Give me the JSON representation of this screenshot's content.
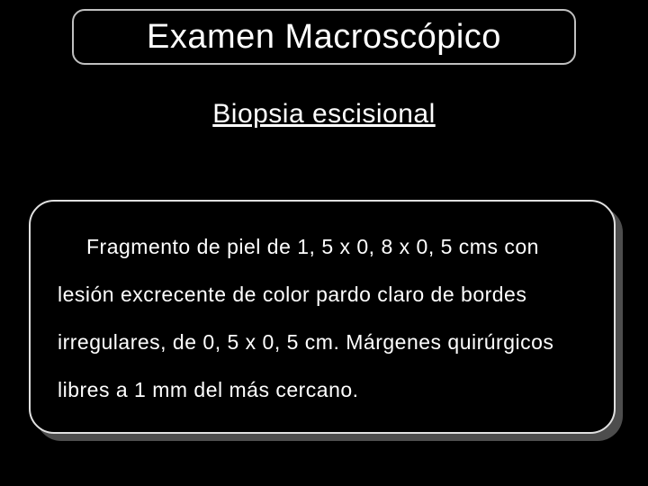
{
  "slide": {
    "title": "Examen Macroscópico",
    "subtitle": "Biopsia escisional",
    "body": "Fragmento de piel de 1, 5 x 0, 8 x 0, 5 cms con lesión excrecente de color pardo claro de bordes irregulares, de 0, 5 x 0, 5 cm. Márgenes quirúrgicos libres a 1 mm del más  cercano."
  },
  "style": {
    "background_color": "#000000",
    "text_color": "#ffffff",
    "border_color": "#c0c0c0",
    "shadow_color": "#4d4d4d",
    "title_fontsize": 38,
    "subtitle_fontsize": 30,
    "body_fontsize": 23,
    "font_family": "Comic Sans MS",
    "title_box_radius": 14,
    "body_box_radius": 28
  }
}
